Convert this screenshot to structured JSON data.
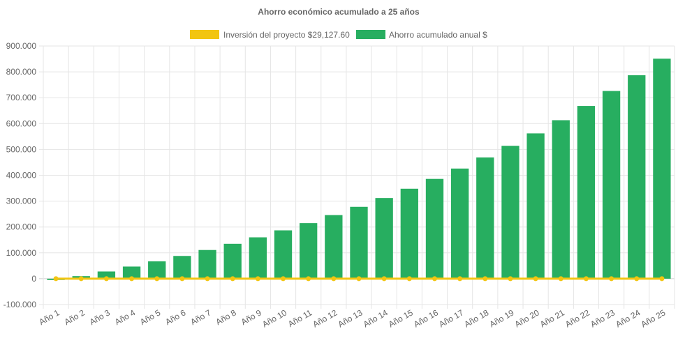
{
  "chart_data": {
    "type": "bar",
    "title": "Ahorro económico acumulado a 25 años",
    "categories": [
      "Año 1",
      "Año 2",
      "Año 3",
      "Año 4",
      "Año 5",
      "Año 6",
      "Año 7",
      "Año 8",
      "Año 9",
      "Año 10",
      "Año 11",
      "Año 12",
      "Año 13",
      "Año 14",
      "Año 15",
      "Año 16",
      "Año 17",
      "Año 18",
      "Año 19",
      "Año 20",
      "Año 21",
      "Año 22",
      "Año 23",
      "Año 24",
      "Año 25"
    ],
    "series": [
      {
        "name": "Inversión del proyecto $29,127.60",
        "type": "line",
        "color": "#f2c511",
        "values": [
          0,
          0,
          0,
          0,
          0,
          0,
          0,
          0,
          0,
          0,
          0,
          0,
          0,
          0,
          0,
          0,
          0,
          0,
          0,
          0,
          0,
          0,
          0,
          0,
          0
        ]
      },
      {
        "name": "Ahorro acumulado anual $",
        "type": "bar",
        "color": "#27ae60",
        "values": [
          -5000,
          10000,
          28000,
          47000,
          67000,
          88000,
          111000,
          135000,
          160000,
          187000,
          215000,
          246000,
          278000,
          312000,
          348000,
          386000,
          426000,
          469000,
          514000,
          562000,
          613000,
          668000,
          726000,
          787000,
          851000
        ]
      }
    ],
    "xlabel": "",
    "ylabel": "",
    "ylim": [
      -100000,
      900000
    ],
    "yticks": [
      "900.000",
      "800.000",
      "700.000",
      "600.000",
      "500.000",
      "400.000",
      "300.000",
      "200.000",
      "100.000",
      "0",
      "-100.000"
    ],
    "ytick_values": [
      900000,
      800000,
      700000,
      600000,
      500000,
      400000,
      300000,
      200000,
      100000,
      0,
      -100000
    ],
    "grid": true,
    "legend_position": "top-center"
  }
}
